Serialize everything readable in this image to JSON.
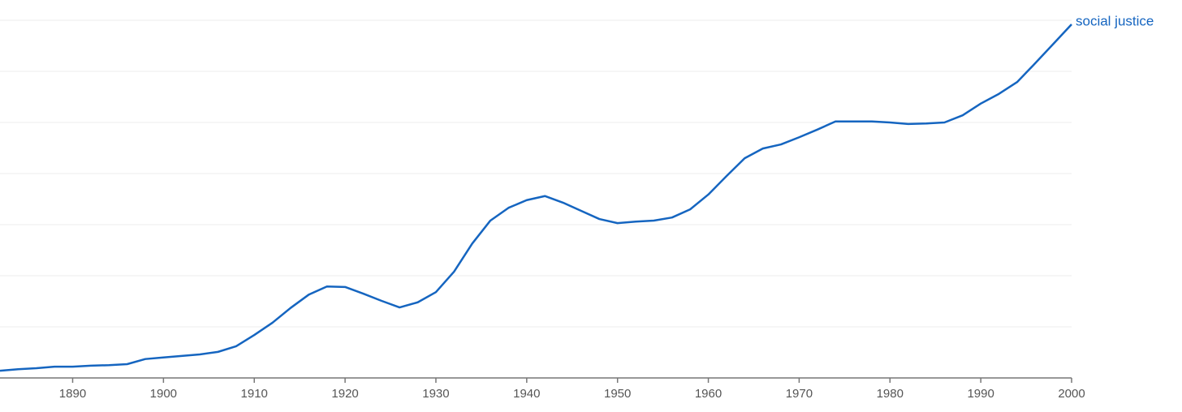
{
  "chart_data": {
    "type": "line",
    "x": [
      1882,
      1884,
      1886,
      1888,
      1890,
      1892,
      1894,
      1896,
      1898,
      1900,
      1902,
      1904,
      1906,
      1908,
      1910,
      1912,
      1914,
      1916,
      1918,
      1920,
      1922,
      1924,
      1926,
      1928,
      1930,
      1932,
      1934,
      1936,
      1938,
      1940,
      1942,
      1944,
      1946,
      1948,
      1950,
      1952,
      1954,
      1956,
      1958,
      1960,
      1962,
      1964,
      1966,
      1968,
      1970,
      1972,
      1974,
      1976,
      1978,
      1980,
      1982,
      1984,
      1986,
      1988,
      1990,
      1992,
      1994,
      1996,
      1998,
      2000
    ],
    "series": [
      {
        "name": "social justice",
        "color": "#1565c0",
        "values": [
          0.14,
          0.17,
          0.19,
          0.22,
          0.22,
          0.24,
          0.25,
          0.27,
          0.37,
          0.4,
          0.43,
          0.46,
          0.51,
          0.62,
          0.84,
          1.08,
          1.37,
          1.63,
          1.79,
          1.78,
          1.65,
          1.51,
          1.38,
          1.48,
          1.68,
          2.08,
          2.63,
          3.08,
          3.33,
          3.48,
          3.56,
          3.43,
          3.27,
          3.11,
          3.03,
          3.06,
          3.08,
          3.14,
          3.3,
          3.59,
          3.95,
          4.3,
          4.49,
          4.57,
          4.71,
          4.86,
          5.02,
          5.02,
          5.02,
          5.0,
          4.97,
          4.98,
          5.0,
          5.14,
          5.37,
          5.56,
          5.79,
          6.16,
          6.54,
          6.92
        ]
      }
    ],
    "xlim": [
      1882,
      2000
    ],
    "xticks": [
      1890,
      1900,
      1910,
      1920,
      1930,
      1940,
      1950,
      1960,
      1970,
      1980,
      1990,
      2000
    ],
    "ylim": [
      0,
      7
    ],
    "yticks": [
      0,
      1,
      2,
      3,
      4,
      5,
      6,
      7
    ],
    "y_tick_labels_shown": false,
    "grid": true
  }
}
